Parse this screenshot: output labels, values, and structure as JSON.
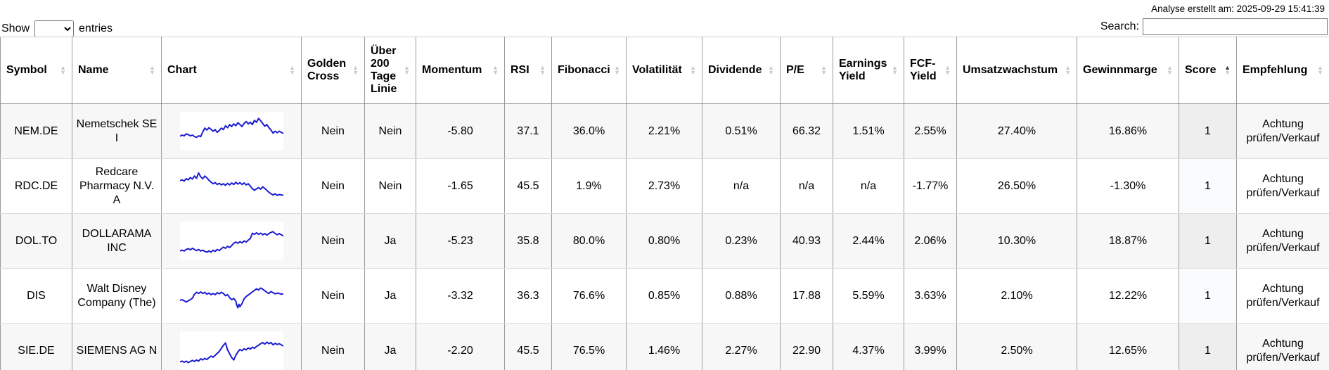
{
  "meta": {
    "analysis_note": "Analyse erstellt am: 2025-09-29 15:41:39"
  },
  "controls": {
    "show_label": "Show",
    "entries_label": "entries",
    "entries_value": "",
    "search_label": "Search:",
    "search_value": ""
  },
  "colors": {
    "sparkline": "#1b1bd1",
    "stripe": "#f7f7f7",
    "sorted_stripe": "#eeeeee",
    "border_dark": "#9b9b9b",
    "border_light": "#dddddd"
  },
  "table": {
    "columns": [
      {
        "field": "symbol",
        "label": "Symbol",
        "sort": "both"
      },
      {
        "field": "name",
        "label": "Name",
        "sort": "both"
      },
      {
        "field": "chart",
        "label": "Chart",
        "sort": "both"
      },
      {
        "field": "golden_cross",
        "label": "Golden Cross",
        "sort": "both"
      },
      {
        "field": "ueber_200_tage_linie",
        "label": "Über 200 Tage Linie",
        "sort": "both"
      },
      {
        "field": "momentum",
        "label": "Momentum",
        "sort": "both"
      },
      {
        "field": "rsi",
        "label": "RSI",
        "sort": "both"
      },
      {
        "field": "fibonacci",
        "label": "Fibonacci",
        "sort": "both"
      },
      {
        "field": "volatilitaet",
        "label": "Volatilität",
        "sort": "both"
      },
      {
        "field": "dividende",
        "label": "Dividende",
        "sort": "both"
      },
      {
        "field": "pe",
        "label": "P/E",
        "sort": "both"
      },
      {
        "field": "earnings_yield",
        "label": "Earnings Yield",
        "sort": "both"
      },
      {
        "field": "fcf_yield",
        "label": "FCF-Yield",
        "sort": "both"
      },
      {
        "field": "umsatzwachstum",
        "label": "Umsatzwachstum",
        "sort": "both"
      },
      {
        "field": "gewinnmarge",
        "label": "Gewinnmarge",
        "sort": "both"
      },
      {
        "field": "score",
        "label": "Score",
        "sort": "asc"
      },
      {
        "field": "empfehlung",
        "label": "Empfehlung",
        "sort": "both"
      }
    ],
    "rows": [
      {
        "symbol": "NEM.DE",
        "name": "Nemetschek SE I",
        "golden_cross": "Nein",
        "ueber_200_tage_linie": "Nein",
        "momentum": "-5.80",
        "rsi": "37.1",
        "fibonacci": "36.0%",
        "volatilitaet": "2.21%",
        "dividende": "0.51%",
        "pe": "66.32",
        "earnings_yield": "1.51%",
        "fcf_yield": "2.55%",
        "umsatzwachstum": "27.40%",
        "gewinnmarge": "16.86%",
        "score": "1",
        "empfehlung": "Achtung prüfen/Verkauf",
        "chart_points": [
          [
            0,
            63
          ],
          [
            2,
            60
          ],
          [
            4,
            62
          ],
          [
            6,
            57
          ],
          [
            8,
            59
          ],
          [
            10,
            62
          ],
          [
            12,
            60
          ],
          [
            14,
            64
          ],
          [
            16,
            66
          ],
          [
            18,
            62
          ],
          [
            20,
            64
          ],
          [
            22,
            52
          ],
          [
            24,
            42
          ],
          [
            26,
            47
          ],
          [
            28,
            41
          ],
          [
            30,
            45
          ],
          [
            32,
            50
          ],
          [
            34,
            46
          ],
          [
            36,
            53
          ],
          [
            38,
            48
          ],
          [
            40,
            42
          ],
          [
            42,
            46
          ],
          [
            44,
            36
          ],
          [
            46,
            41
          ],
          [
            48,
            33
          ],
          [
            50,
            38
          ],
          [
            52,
            31
          ],
          [
            54,
            36
          ],
          [
            56,
            28
          ],
          [
            58,
            33
          ],
          [
            60,
            38
          ],
          [
            62,
            30
          ],
          [
            64,
            25
          ],
          [
            66,
            31
          ],
          [
            68,
            27
          ],
          [
            70,
            33
          ],
          [
            72,
            22
          ],
          [
            74,
            27
          ],
          [
            76,
            17
          ],
          [
            78,
            23
          ],
          [
            80,
            30
          ],
          [
            82,
            37
          ],
          [
            84,
            33
          ],
          [
            86,
            41
          ],
          [
            88,
            47
          ],
          [
            90,
            55
          ],
          [
            92,
            50
          ],
          [
            94,
            54
          ],
          [
            96,
            50
          ],
          [
            98,
            53
          ],
          [
            100,
            56
          ]
        ]
      },
      {
        "symbol": "RDC.DE",
        "name": "Redcare Pharmacy N.V. A",
        "golden_cross": "Nein",
        "ueber_200_tage_linie": "Nein",
        "momentum": "-1.65",
        "rsi": "45.5",
        "fibonacci": "1.9%",
        "volatilitaet": "2.73%",
        "dividende": "n/a",
        "pe": "n/a",
        "earnings_yield": "n/a",
        "fcf_yield": "-1.77%",
        "umsatzwachstum": "26.50%",
        "gewinnmarge": "-1.30%",
        "score": "1",
        "empfehlung": "Achtung prüfen/Verkauf",
        "chart_points": [
          [
            0,
            36
          ],
          [
            2,
            34
          ],
          [
            4,
            37
          ],
          [
            6,
            31
          ],
          [
            8,
            34
          ],
          [
            10,
            28
          ],
          [
            12,
            32
          ],
          [
            14,
            24
          ],
          [
            16,
            30
          ],
          [
            18,
            16
          ],
          [
            20,
            26
          ],
          [
            22,
            31
          ],
          [
            24,
            24
          ],
          [
            26,
            29
          ],
          [
            28,
            35
          ],
          [
            30,
            40
          ],
          [
            32,
            44
          ],
          [
            34,
            41
          ],
          [
            36,
            46
          ],
          [
            38,
            43
          ],
          [
            40,
            47
          ],
          [
            42,
            44
          ],
          [
            44,
            48
          ],
          [
            46,
            43
          ],
          [
            48,
            47
          ],
          [
            50,
            42
          ],
          [
            52,
            46
          ],
          [
            54,
            40
          ],
          [
            56,
            45
          ],
          [
            58,
            41
          ],
          [
            60,
            46
          ],
          [
            62,
            42
          ],
          [
            64,
            47
          ],
          [
            66,
            44
          ],
          [
            68,
            50
          ],
          [
            70,
            57
          ],
          [
            72,
            61
          ],
          [
            74,
            57
          ],
          [
            76,
            54
          ],
          [
            78,
            58
          ],
          [
            80,
            52
          ],
          [
            82,
            56
          ],
          [
            84,
            61
          ],
          [
            86,
            66
          ],
          [
            88,
            70
          ],
          [
            90,
            73
          ],
          [
            92,
            70
          ],
          [
            94,
            74
          ],
          [
            96,
            72
          ],
          [
            98,
            73
          ],
          [
            100,
            74
          ]
        ]
      },
      {
        "symbol": "DOL.TO",
        "name": "DOLLARAMA INC",
        "golden_cross": "Nein",
        "ueber_200_tage_linie": "Ja",
        "momentum": "-5.23",
        "rsi": "35.8",
        "fibonacci": "80.0%",
        "volatilitaet": "0.80%",
        "dividende": "0.23%",
        "pe": "40.93",
        "earnings_yield": "2.44%",
        "fcf_yield": "2.06%",
        "umsatzwachstum": "10.30%",
        "gewinnmarge": "18.87%",
        "score": "1",
        "empfehlung": "Achtung prüfen/Verkauf",
        "chart_points": [
          [
            0,
            76
          ],
          [
            2,
            74
          ],
          [
            4,
            76
          ],
          [
            6,
            72
          ],
          [
            8,
            70
          ],
          [
            10,
            73
          ],
          [
            12,
            69
          ],
          [
            14,
            72
          ],
          [
            16,
            75
          ],
          [
            18,
            72
          ],
          [
            20,
            76
          ],
          [
            22,
            74
          ],
          [
            24,
            77
          ],
          [
            26,
            79
          ],
          [
            28,
            76
          ],
          [
            30,
            79
          ],
          [
            32,
            74
          ],
          [
            34,
            77
          ],
          [
            36,
            72
          ],
          [
            38,
            75
          ],
          [
            40,
            70
          ],
          [
            42,
            66
          ],
          [
            44,
            69
          ],
          [
            46,
            64
          ],
          [
            48,
            67
          ],
          [
            50,
            62
          ],
          [
            52,
            56
          ],
          [
            54,
            53
          ],
          [
            56,
            56
          ],
          [
            58,
            52
          ],
          [
            60,
            55
          ],
          [
            62,
            50
          ],
          [
            64,
            53
          ],
          [
            66,
            48
          ],
          [
            68,
            44
          ],
          [
            70,
            30
          ],
          [
            72,
            33
          ],
          [
            74,
            29
          ],
          [
            76,
            33
          ],
          [
            78,
            30
          ],
          [
            80,
            34
          ],
          [
            82,
            31
          ],
          [
            84,
            35
          ],
          [
            86,
            31
          ],
          [
            88,
            28
          ],
          [
            90,
            26
          ],
          [
            92,
            31
          ],
          [
            94,
            34
          ],
          [
            96,
            31
          ],
          [
            98,
            34
          ],
          [
            100,
            37
          ]
        ]
      },
      {
        "symbol": "DIS",
        "name": "Walt Disney Company (The)",
        "golden_cross": "Nein",
        "ueber_200_tage_linie": "Ja",
        "momentum": "-3.32",
        "rsi": "36.3",
        "fibonacci": "76.6%",
        "volatilitaet": "0.85%",
        "dividende": "0.88%",
        "pe": "17.88",
        "earnings_yield": "5.59%",
        "fcf_yield": "3.63%",
        "umsatzwachstum": "2.10%",
        "gewinnmarge": "12.22%",
        "score": "1",
        "empfehlung": "Achtung prüfen/Verkauf",
        "chart_points": [
          [
            0,
            62
          ],
          [
            2,
            60
          ],
          [
            4,
            63
          ],
          [
            6,
            66
          ],
          [
            8,
            63
          ],
          [
            10,
            60
          ],
          [
            12,
            56
          ],
          [
            14,
            46
          ],
          [
            16,
            41
          ],
          [
            18,
            44
          ],
          [
            20,
            40
          ],
          [
            22,
            44
          ],
          [
            24,
            41
          ],
          [
            26,
            46
          ],
          [
            28,
            43
          ],
          [
            30,
            47
          ],
          [
            32,
            44
          ],
          [
            34,
            47
          ],
          [
            36,
            42
          ],
          [
            38,
            45
          ],
          [
            40,
            41
          ],
          [
            42,
            44
          ],
          [
            44,
            50
          ],
          [
            46,
            47
          ],
          [
            48,
            55
          ],
          [
            50,
            60
          ],
          [
            52,
            57
          ],
          [
            54,
            64
          ],
          [
            55,
            75
          ],
          [
            56,
            81
          ],
          [
            57,
            72
          ],
          [
            58,
            78
          ],
          [
            60,
            70
          ],
          [
            62,
            58
          ],
          [
            64,
            52
          ],
          [
            66,
            48
          ],
          [
            68,
            44
          ],
          [
            70,
            40
          ],
          [
            72,
            36
          ],
          [
            74,
            32
          ],
          [
            76,
            35
          ],
          [
            78,
            30
          ],
          [
            80,
            33
          ],
          [
            82,
            37
          ],
          [
            84,
            41
          ],
          [
            86,
            44
          ],
          [
            88,
            39
          ],
          [
            90,
            42
          ],
          [
            92,
            45
          ],
          [
            94,
            43
          ],
          [
            96,
            44
          ],
          [
            98,
            46
          ],
          [
            100,
            45
          ]
        ]
      },
      {
        "symbol": "SIE.DE",
        "name": "SIEMENS AG N",
        "golden_cross": "Nein",
        "ueber_200_tage_linie": "Ja",
        "momentum": "-2.20",
        "rsi": "45.5",
        "fibonacci": "76.5%",
        "volatilitaet": "1.46%",
        "dividende": "2.27%",
        "pe": "22.90",
        "earnings_yield": "4.37%",
        "fcf_yield": "3.99%",
        "umsatzwachstum": "2.50%",
        "gewinnmarge": "12.65%",
        "score": "1",
        "empfehlung": "Achtung prüfen/Verkauf",
        "chart_points": [
          [
            0,
            79
          ],
          [
            2,
            77
          ],
          [
            4,
            80
          ],
          [
            6,
            77
          ],
          [
            8,
            81
          ],
          [
            10,
            78
          ],
          [
            12,
            75
          ],
          [
            14,
            78
          ],
          [
            16,
            74
          ],
          [
            18,
            77
          ],
          [
            20,
            71
          ],
          [
            22,
            74
          ],
          [
            24,
            70
          ],
          [
            26,
            73
          ],
          [
            28,
            68
          ],
          [
            30,
            64
          ],
          [
            32,
            67
          ],
          [
            34,
            62
          ],
          [
            36,
            57
          ],
          [
            38,
            52
          ],
          [
            40,
            44
          ],
          [
            42,
            36
          ],
          [
            44,
            30
          ],
          [
            45,
            39
          ],
          [
            46,
            48
          ],
          [
            48,
            58
          ],
          [
            50,
            68
          ],
          [
            52,
            74
          ],
          [
            54,
            62
          ],
          [
            56,
            53
          ],
          [
            58,
            47
          ],
          [
            60,
            50
          ],
          [
            62,
            45
          ],
          [
            64,
            48
          ],
          [
            66,
            43
          ],
          [
            68,
            46
          ],
          [
            70,
            41
          ],
          [
            72,
            44
          ],
          [
            74,
            39
          ],
          [
            76,
            36
          ],
          [
            78,
            32
          ],
          [
            80,
            29
          ],
          [
            82,
            33
          ],
          [
            84,
            28
          ],
          [
            86,
            32
          ],
          [
            88,
            29
          ],
          [
            90,
            35
          ],
          [
            92,
            31
          ],
          [
            94,
            34
          ],
          [
            96,
            32
          ],
          [
            98,
            35
          ],
          [
            100,
            38
          ]
        ]
      }
    ]
  }
}
